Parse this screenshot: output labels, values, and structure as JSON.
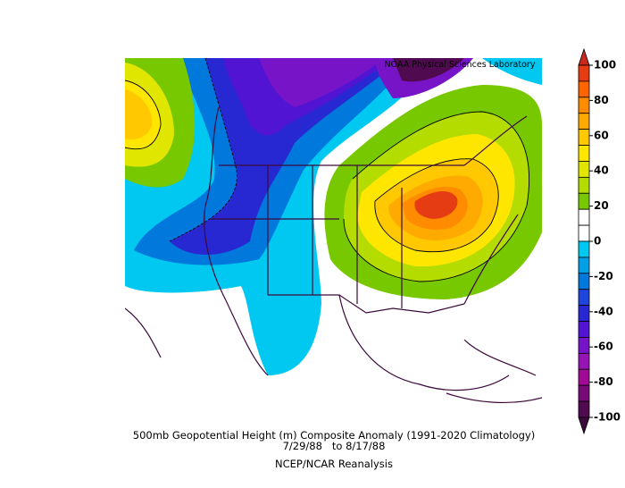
{
  "credit": "NOAA Physical Sciences Laboratory",
  "caption": {
    "line1": "500mb Geopotential Height (m) Composite Anomaly (1991-2020 Climatology)",
    "line2": "7/29/88   to 8/17/88",
    "line3": "NCEP/NCAR Reanalysis"
  },
  "colorbar": {
    "lim": [
      -100,
      100
    ],
    "ticks": [
      100,
      80,
      60,
      40,
      20,
      0,
      -20,
      -40,
      -60,
      -80,
      -100
    ],
    "colors": [
      "#c8281e",
      "#e63c14",
      "#ff6400",
      "#ff8c00",
      "#ffaa00",
      "#ffc800",
      "#ffe600",
      "#e1e600",
      "#b4dc00",
      "#78c800",
      "#ffffff",
      "#ffffff",
      "#00c8f0",
      "#00a0e6",
      "#0078dc",
      "#1e46dc",
      "#2828d2",
      "#5014d2",
      "#7814c8",
      "#9614b4",
      "#a00a96",
      "#780a78",
      "#500a50",
      "#3c0a3c"
    ]
  }
}
